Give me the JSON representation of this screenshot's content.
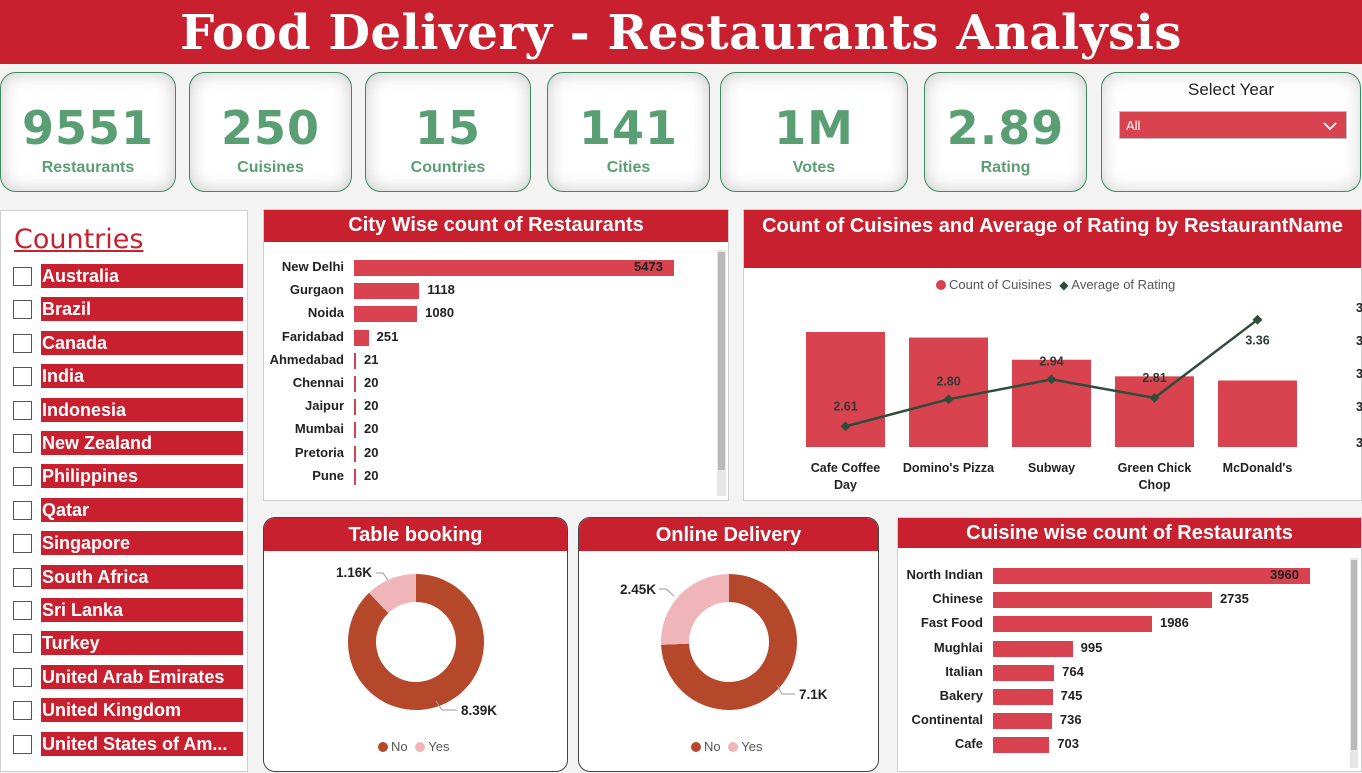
{
  "header": {
    "title": "Food Delivery - Restaurants Analysis"
  },
  "kpis": [
    {
      "value": "9551",
      "label": "Restaurants"
    },
    {
      "value": "250",
      "label": "Cuisines"
    },
    {
      "value": "15",
      "label": "Countries"
    },
    {
      "value": "141",
      "label": "Cities"
    },
    {
      "value": "1M",
      "label": "Votes"
    },
    {
      "value": "2.89",
      "label": "Rating"
    }
  ],
  "year_filter": {
    "title": "Select Year",
    "selected": "All",
    "icon": "chevron-down-icon"
  },
  "countries": {
    "title": "Countries",
    "items": [
      "Australia",
      "Brazil",
      "Canada",
      "India",
      "Indonesia",
      "New Zealand",
      "Philippines",
      "Qatar",
      "Singapore",
      "South Africa",
      "Sri Lanka",
      "Turkey",
      "United Arab Emirates",
      "United Kingdom",
      "United States of Am..."
    ]
  },
  "colors": {
    "accent": "#c8202f",
    "bar": "#d8434f",
    "kpi_text": "#5a9e73",
    "line": "#2e4d38",
    "donut_no": "#b5482b",
    "donut_yes": "#f0b5b9"
  },
  "chart_data": [
    {
      "id": "city",
      "type": "bar",
      "title": "City Wise count of Restaurants",
      "orientation": "horizontal",
      "categories": [
        "New Delhi",
        "Gurgaon",
        "Noida",
        "Faridabad",
        "Ahmedabad",
        "Chennai",
        "Jaipur",
        "Mumbai",
        "Pretoria",
        "Pune"
      ],
      "values": [
        5473,
        1118,
        1080,
        251,
        21,
        20,
        20,
        20,
        20,
        20
      ]
    },
    {
      "id": "combo",
      "type": "bar",
      "title": "Count of Cuisines and Average of Rating by RestaurantName",
      "categories": [
        "Cafe Coffee Day",
        "Domino's Pizza",
        "Subway",
        "Green Chick Chop",
        "McDonald's"
      ],
      "series": [
        {
          "name": "Count of Cuisines",
          "type": "bar",
          "values": [
            83,
            79,
            63,
            51,
            48
          ]
        },
        {
          "name": "Average of Rating",
          "type": "line",
          "values": [
            2.61,
            2.8,
            2.94,
            2.81,
            3.36
          ],
          "labels": [
            "2.61",
            "2.80",
            "2.94",
            "2.81",
            "3.36"
          ]
        }
      ],
      "y2_tick_labels": [
        "3",
        "3",
        "3",
        "3",
        "3"
      ]
    },
    {
      "id": "table",
      "type": "pie",
      "title": "Table booking",
      "categories": [
        "No",
        "Yes"
      ],
      "values": [
        8390,
        1160
      ],
      "labels": [
        "8.39K",
        "1.16K"
      ]
    },
    {
      "id": "online",
      "type": "pie",
      "title": "Online Delivery",
      "categories": [
        "No",
        "Yes"
      ],
      "values": [
        7100,
        2450
      ],
      "labels": [
        "7.1K",
        "2.45K"
      ]
    },
    {
      "id": "cuisine",
      "type": "bar",
      "title": "Cuisine wise count of Restaurants",
      "orientation": "horizontal",
      "categories": [
        "North Indian",
        "Chinese",
        "Fast Food",
        "Mughlai",
        "Italian",
        "Bakery",
        "Continental",
        "Cafe"
      ],
      "values": [
        3960,
        2735,
        1986,
        995,
        764,
        745,
        736,
        703
      ]
    }
  ]
}
